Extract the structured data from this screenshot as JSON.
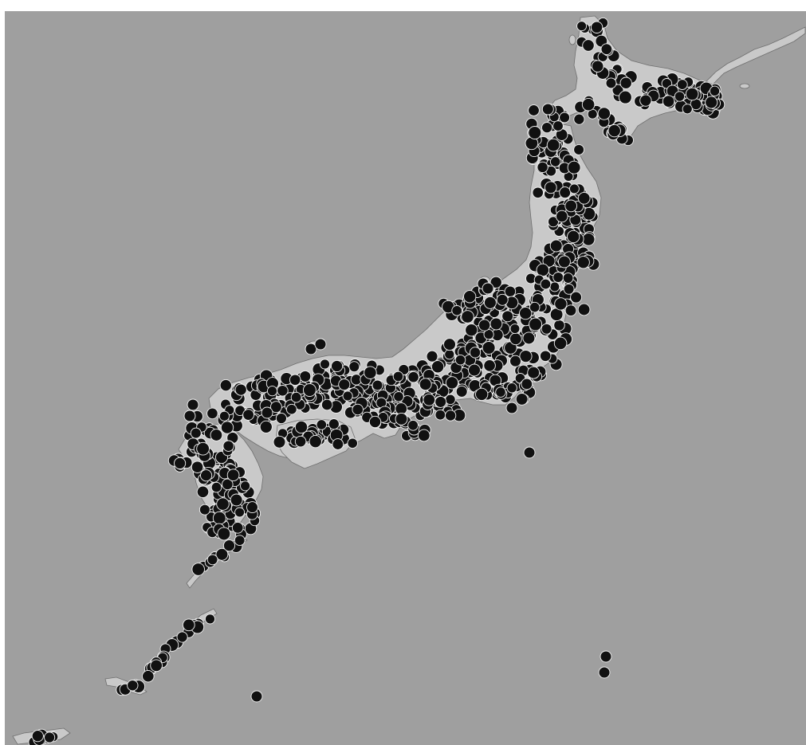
{
  "map": {
    "kind": "station-distribution",
    "region": "Japan",
    "colors": {
      "sea": "#9f9f9f",
      "land": "#c9c9c9",
      "coastline": "#6f6f6f",
      "marker_fill": "#111111",
      "marker_outline": "#f2f2f2"
    },
    "marker": {
      "shape": "filled-circle"
    },
    "title": "",
    "legend": ""
  }
}
